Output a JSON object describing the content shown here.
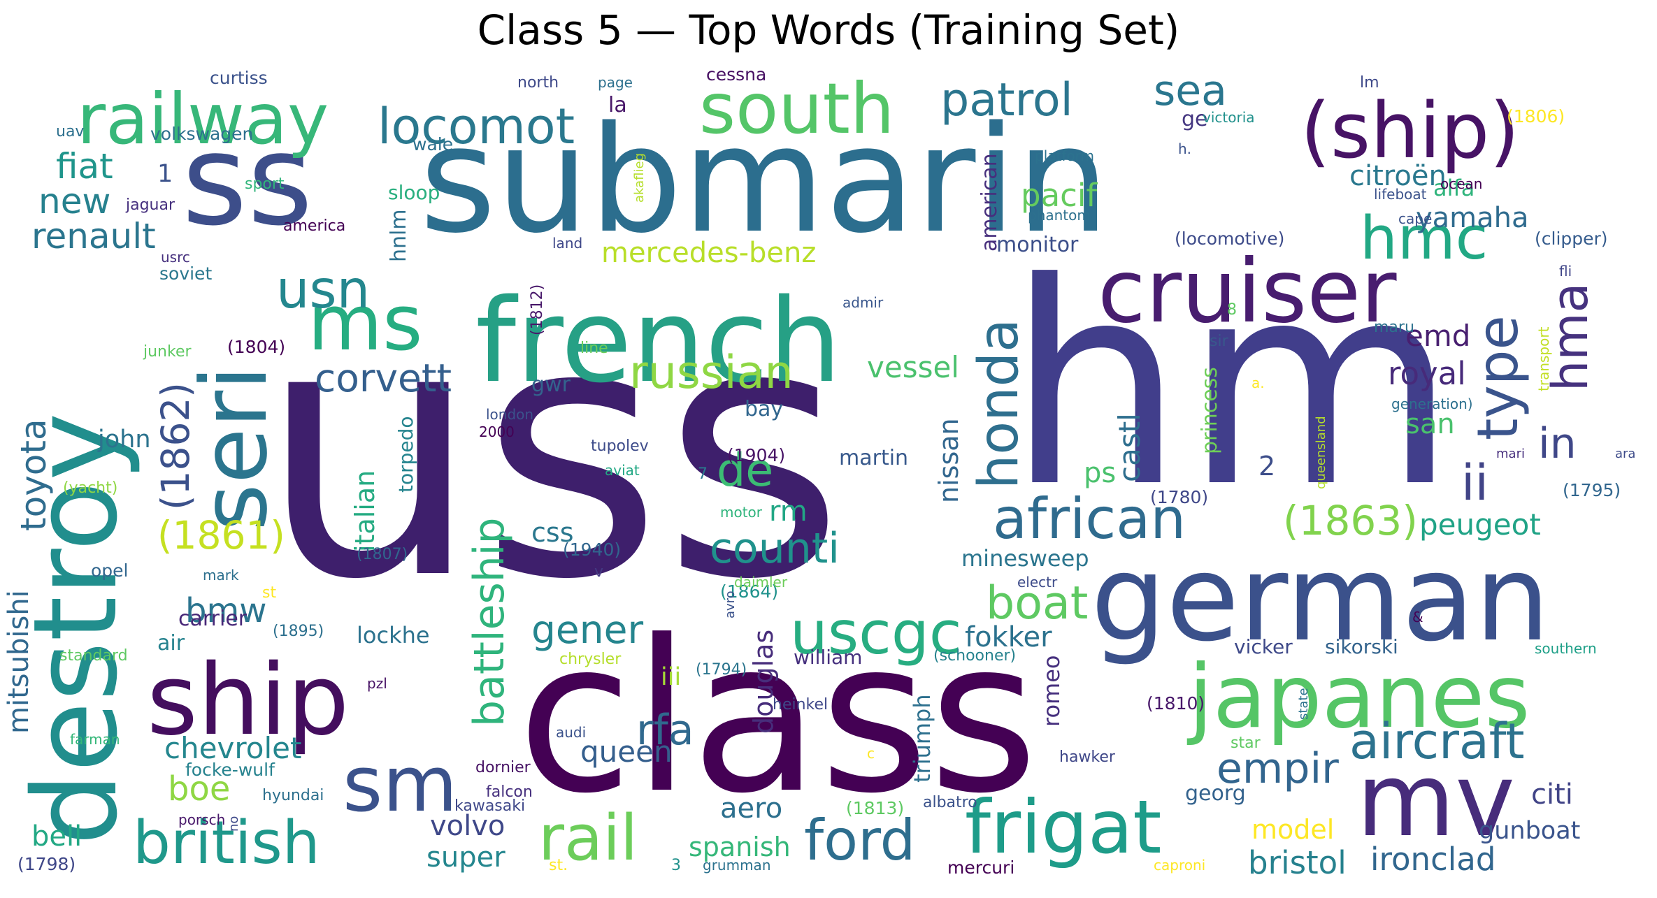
{
  "chart_data": {
    "type": "wordcloud",
    "title": "Class 5 — Top Words (Training Set)",
    "words": [
      {
        "text": "uss",
        "color": "#3e1f6c"
      },
      {
        "text": "hm",
        "color": "#413e8b"
      },
      {
        "text": "class",
        "color": "#440154"
      },
      {
        "text": "submarin",
        "color": "#2c6e8e"
      },
      {
        "text": "ss",
        "color": "#3d4e8a"
      },
      {
        "text": "german",
        "color": "#3b518b"
      },
      {
        "text": "french",
        "color": "#26a085"
      },
      {
        "text": "destroy",
        "color": "#218e8d"
      },
      {
        "text": "ship",
        "color": "#440e5e"
      },
      {
        "text": "japanes",
        "color": "#55c566"
      },
      {
        "text": "cruiser",
        "color": "#481d6f"
      },
      {
        "text": "seri",
        "color": "#2b758e"
      },
      {
        "text": "mv",
        "color": "#472c7b"
      },
      {
        "text": "(ship)",
        "color": "#471365"
      },
      {
        "text": "railway",
        "color": "#37b779"
      },
      {
        "text": "south",
        "color": "#54c568"
      },
      {
        "text": "frigat",
        "color": "#1e9c89"
      },
      {
        "text": "sm",
        "color": "#3b528b"
      },
      {
        "text": "ms",
        "color": "#26ad81"
      },
      {
        "text": "british",
        "color": "#1f988b"
      },
      {
        "text": "aircraft",
        "color": "#2c728e"
      },
      {
        "text": "african",
        "color": "#2f6b8e"
      },
      {
        "text": "honda",
        "color": "#2e6f8e"
      },
      {
        "text": "hmc",
        "color": "#22a884"
      },
      {
        "text": "rail",
        "color": "#6ccd5a"
      },
      {
        "text": "hma",
        "color": "#46327e"
      },
      {
        "text": "locomot",
        "color": "#2a788e"
      },
      {
        "text": "type",
        "color": "#3a548c"
      },
      {
        "text": "ford",
        "color": "#2e6e8e"
      },
      {
        "text": "uscgc",
        "color": "#27ad81"
      },
      {
        "text": "patrol",
        "color": "#2b758e"
      },
      {
        "text": "usn",
        "color": "#24878e"
      },
      {
        "text": "russian",
        "color": "#8fd744"
      },
      {
        "text": "(1863)",
        "color": "#81d34d"
      },
      {
        "text": "(1862)",
        "color": "#3b518b"
      },
      {
        "text": "battleship",
        "color": "#2fb47c"
      },
      {
        "text": "counti",
        "color": "#20928c"
      },
      {
        "text": "corvett",
        "color": "#345f8d"
      },
      {
        "text": "sea",
        "color": "#2a768e"
      },
      {
        "text": "boat",
        "color": "#5ec962"
      },
      {
        "text": "toyota",
        "color": "#2f6c8e"
      },
      {
        "text": "(1861)",
        "color": "#c5e021"
      },
      {
        "text": "empir",
        "color": "#32658e"
      },
      {
        "text": "rfa",
        "color": "#30698e"
      },
      {
        "text": "ii",
        "color": "#414487"
      },
      {
        "text": "in",
        "color": "#3f4788"
      },
      {
        "text": "de",
        "color": "#3cbc74"
      },
      {
        "text": "new",
        "color": "#26818e"
      },
      {
        "text": "fiat",
        "color": "#1f958b"
      },
      {
        "text": "renault",
        "color": "#2b758e"
      },
      {
        "text": "royal",
        "color": "#472a7a"
      },
      {
        "text": "bmw",
        "color": "#2b748e"
      },
      {
        "text": "gener",
        "color": "#25858e"
      },
      {
        "text": "mitsubishi",
        "color": "#31688e"
      },
      {
        "text": "pacif",
        "color": "#65cb5e"
      },
      {
        "text": "citroën",
        "color": "#2a788e"
      },
      {
        "text": "yamaha",
        "color": "#2f6b8e"
      },
      {
        "text": "mercedes-benz",
        "color": "#b8de29"
      },
      {
        "text": "vessel",
        "color": "#4ac16d"
      },
      {
        "text": "castl",
        "color": "#2e6e8e"
      },
      {
        "text": "emd",
        "color": "#481f70"
      },
      {
        "text": "nissan",
        "color": "#31668e"
      },
      {
        "text": "italian",
        "color": "#25ab82"
      },
      {
        "text": "peugeot",
        "color": "#20a386"
      },
      {
        "text": "chevrolet",
        "color": "#24868e"
      },
      {
        "text": "queen",
        "color": "#355f8d"
      },
      {
        "text": "boe",
        "color": "#8fd744"
      },
      {
        "text": "douglas",
        "color": "#472d7b"
      },
      {
        "text": "fokker",
        "color": "#2c728e"
      },
      {
        "text": "model",
        "color": "#fde725"
      },
      {
        "text": "gunboat",
        "color": "#3a548c"
      },
      {
        "text": "ironclad",
        "color": "#31668e"
      },
      {
        "text": "bristol",
        "color": "#26818e"
      },
      {
        "text": "citi",
        "color": "#414487"
      },
      {
        "text": "aero",
        "color": "#2d708e"
      },
      {
        "text": "volvo",
        "color": "#3f4889"
      },
      {
        "text": "super",
        "color": "#24868e"
      },
      {
        "text": "spanish",
        "color": "#35b779"
      },
      {
        "text": "bell",
        "color": "#22a884"
      },
      {
        "text": "rm",
        "color": "#22a785"
      },
      {
        "text": "san",
        "color": "#4ac16d"
      },
      {
        "text": "ps",
        "color": "#4ac16d"
      },
      {
        "text": "alfa",
        "color": "#2fb47c"
      },
      {
        "text": "georg",
        "color": "#33628d"
      },
      {
        "text": "hnlm",
        "color": "#2d708e"
      },
      {
        "text": "john",
        "color": "#2c738e"
      },
      {
        "text": "minesweep",
        "color": "#2b758e"
      },
      {
        "text": "martin",
        "color": "#38598c"
      },
      {
        "text": "monitor",
        "color": "#3c4f8a"
      },
      {
        "text": "american",
        "color": "#472f7d"
      },
      {
        "text": "princess",
        "color": "#6ece58"
      },
      {
        "text": "2",
        "color": "#3d4e8a"
      },
      {
        "text": "1",
        "color": "#3b528b"
      },
      {
        "text": "carrier",
        "color": "#482878"
      },
      {
        "text": "lockhe",
        "color": "#2c728e"
      },
      {
        "text": "air",
        "color": "#26828e"
      },
      {
        "text": "bay",
        "color": "#31668e"
      },
      {
        "text": "gwr",
        "color": "#33638d"
      },
      {
        "text": "torpedo",
        "color": "#25848e"
      },
      {
        "text": "css",
        "color": "#2a778e"
      },
      {
        "text": "triumph",
        "color": "#2d708e"
      },
      {
        "text": "romeo",
        "color": "#46307e"
      },
      {
        "text": "iii",
        "color": "#a5db36"
      },
      {
        "text": "vicker",
        "color": "#3e4989"
      },
      {
        "text": "sikorski",
        "color": "#33638d"
      },
      {
        "text": "william",
        "color": "#46307e"
      },
      {
        "text": "wale",
        "color": "#2d718e"
      },
      {
        "text": "volkswagen",
        "color": "#2d708e"
      },
      {
        "text": "curtiss",
        "color": "#3b528b"
      },
      {
        "text": "sloop",
        "color": "#29af7f"
      },
      {
        "text": "soviet",
        "color": "#2a788e"
      },
      {
        "text": "la",
        "color": "#481769"
      },
      {
        "text": "ge",
        "color": "#453781"
      },
      {
        "text": "cessna",
        "color": "#471063"
      },
      {
        "text": "(1806)",
        "color": "#fde725"
      },
      {
        "text": "(locomotive)",
        "color": "#3e4c8a"
      },
      {
        "text": "(clipper)",
        "color": "#365c8d"
      },
      {
        "text": "(1804)",
        "color": "#440154"
      },
      {
        "text": "(1904)",
        "color": "#471365"
      },
      {
        "text": "(1864)",
        "color": "#20928c"
      },
      {
        "text": "(1940)",
        "color": "#31668e"
      },
      {
        "text": "(1810)",
        "color": "#48186a"
      },
      {
        "text": "(1813)",
        "color": "#5ec962"
      },
      {
        "text": "(1795)",
        "color": "#31668e"
      },
      {
        "text": "(1798)",
        "color": "#3f4788"
      },
      {
        "text": "(1780)",
        "color": "#3f4788"
      },
      {
        "text": "(1807)",
        "color": "#31668e"
      },
      {
        "text": "(1895)",
        "color": "#2d708e"
      },
      {
        "text": "(1812)",
        "color": "#48186a"
      },
      {
        "text": "(1794)",
        "color": "#2b758e"
      },
      {
        "text": "(schooner)",
        "color": "#26828e"
      },
      {
        "text": "(yacht)",
        "color": "#8fd744"
      },
      {
        "text": "uav",
        "color": "#2d708e"
      },
      {
        "text": "jaguar",
        "color": "#46307e"
      },
      {
        "text": "america",
        "color": "#440154"
      },
      {
        "text": "usrc",
        "color": "#46307e"
      },
      {
        "text": "sport",
        "color": "#31b57b"
      },
      {
        "text": "junker",
        "color": "#5ec962"
      },
      {
        "text": "north",
        "color": "#3e4989"
      },
      {
        "text": "page",
        "color": "#2d708e"
      },
      {
        "text": "victoria",
        "color": "#21918c"
      },
      {
        "text": "platform",
        "color": "#2c728e"
      },
      {
        "text": "h.",
        "color": "#3b528b"
      },
      {
        "text": "phantom",
        "color": "#2d708e"
      },
      {
        "text": "lifeboat",
        "color": "#3b528b"
      },
      {
        "text": "cape",
        "color": "#3b528b"
      },
      {
        "text": "ocean",
        "color": "#440154"
      },
      {
        "text": "fli",
        "color": "#404688"
      },
      {
        "text": "land",
        "color": "#3f4889"
      },
      {
        "text": "admir",
        "color": "#39568c"
      },
      {
        "text": "line",
        "color": "#6ccd5a"
      },
      {
        "text": "sir",
        "color": "#38598c"
      },
      {
        "text": "maru",
        "color": "#2c728e"
      },
      {
        "text": "generation)",
        "color": "#2d708e"
      },
      {
        "text": "transport",
        "color": "#c2df23"
      },
      {
        "text": "queensland",
        "color": "#b5de2b"
      },
      {
        "text": "mari",
        "color": "#472f7d"
      },
      {
        "text": "ara",
        "color": "#3e4c8a"
      },
      {
        "text": "london",
        "color": "#3b528b"
      },
      {
        "text": "2000",
        "color": "#440154"
      },
      {
        "text": "tupolev",
        "color": "#3e4c8a"
      },
      {
        "text": "aviat",
        "color": "#22a884"
      },
      {
        "text": "7",
        "color": "#2a788e"
      },
      {
        "text": "motor",
        "color": "#2fb47c"
      },
      {
        "text": "mark",
        "color": "#2d708e"
      },
      {
        "text": "v",
        "color": "#443983"
      },
      {
        "text": "daimler",
        "color": "#6ccd5a"
      },
      {
        "text": "electr",
        "color": "#3e4c8a"
      },
      {
        "text": "8",
        "color": "#5ec962"
      },
      {
        "text": "opel",
        "color": "#31668e"
      },
      {
        "text": "st",
        "color": "#fde725"
      },
      {
        "text": "avro",
        "color": "#3b528b"
      },
      {
        "text": "standard",
        "color": "#5ec962"
      },
      {
        "text": "chrysler",
        "color": "#b5de2b"
      },
      {
        "text": "pzl",
        "color": "#471365"
      },
      {
        "text": "heinkel",
        "color": "#3f4889"
      },
      {
        "text": "audi",
        "color": "#3b528b"
      },
      {
        "text": "farman",
        "color": "#35b779"
      },
      {
        "text": "focke-wulf",
        "color": "#26828e"
      },
      {
        "text": "hyundai",
        "color": "#2d708e"
      },
      {
        "text": "dornier",
        "color": "#471365"
      },
      {
        "text": "falcon",
        "color": "#46307e"
      },
      {
        "text": "kawasaki",
        "color": "#3f4889"
      },
      {
        "text": "porsch",
        "color": "#48186a"
      },
      {
        "text": "no",
        "color": "#3e4989"
      },
      {
        "text": "st.",
        "color": "#fde725"
      },
      {
        "text": "3",
        "color": "#21918c"
      },
      {
        "text": "grumman",
        "color": "#2c728e"
      },
      {
        "text": "mercuri",
        "color": "#440154"
      },
      {
        "text": "caproni",
        "color": "#fde725"
      },
      {
        "text": "albatro",
        "color": "#3b528b"
      },
      {
        "text": "hawker",
        "color": "#3f4788"
      },
      {
        "text": "c",
        "color": "#fde725"
      },
      {
        "text": "star",
        "color": "#5ec962"
      },
      {
        "text": "state",
        "color": "#2c728e"
      },
      {
        "text": "southern",
        "color": "#1fa088"
      },
      {
        "text": "&",
        "color": "#440154"
      },
      {
        "text": "akaflieg",
        "color": "#b5de2b"
      },
      {
        "text": "lm",
        "color": "#3e4989"
      },
      {
        "text": "a.",
        "color": "#fde725"
      }
    ]
  }
}
